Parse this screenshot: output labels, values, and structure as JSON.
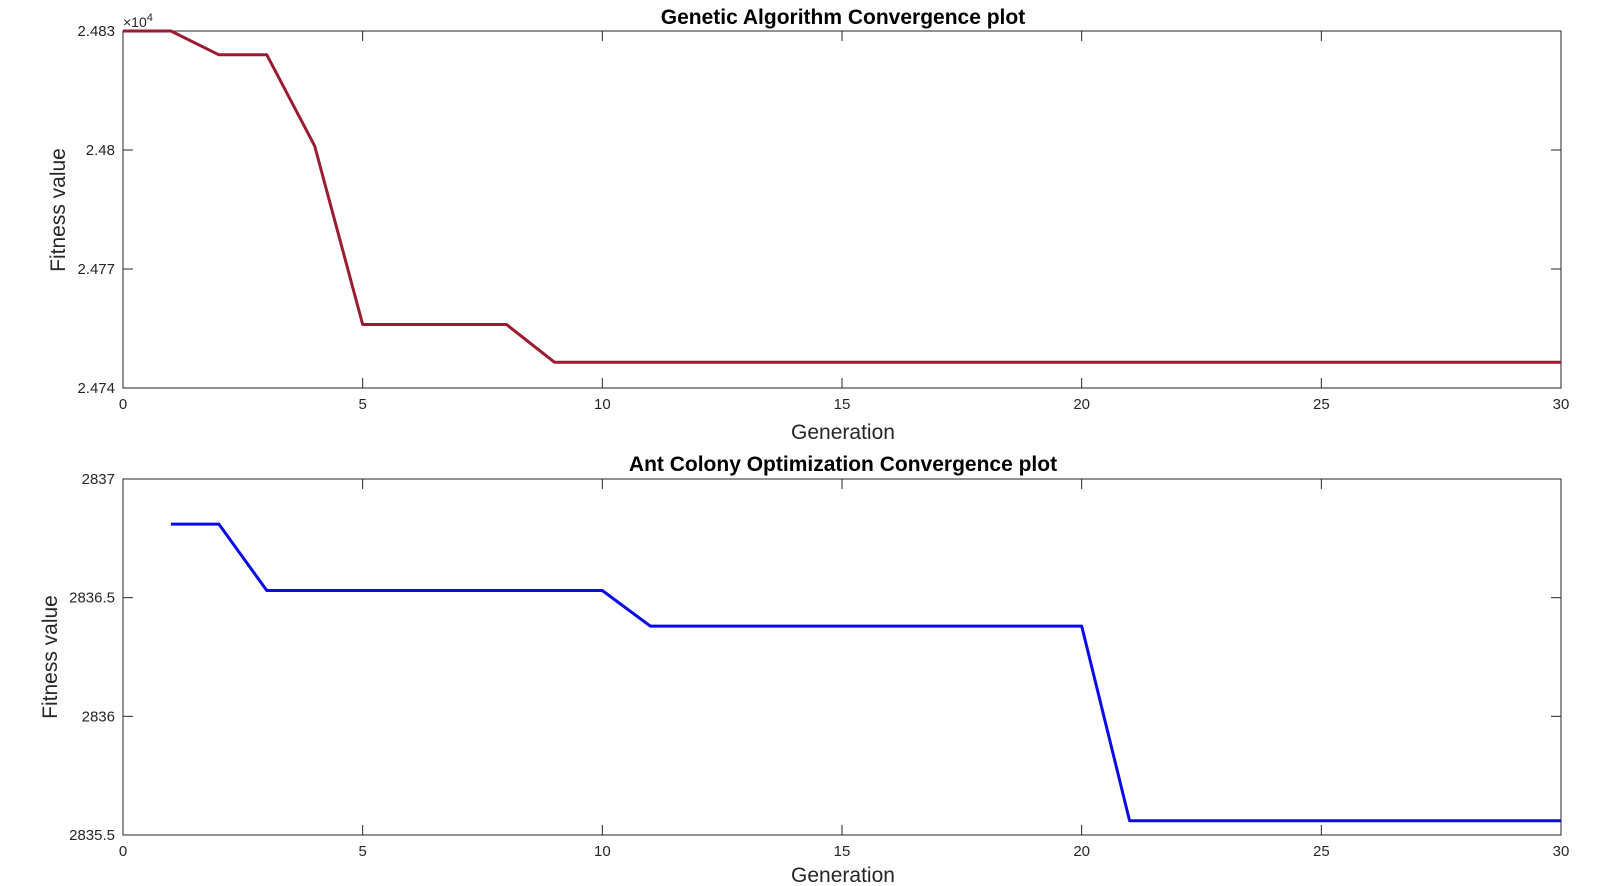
{
  "chart_data": [
    {
      "type": "line",
      "title": "Genetic Algorithm Convergence plot",
      "xlabel": "Generation",
      "ylabel": "Fitness value",
      "xlim": [
        0,
        30
      ],
      "ylim": [
        24740,
        24830
      ],
      "xticks": [
        0,
        5,
        10,
        15,
        20,
        25,
        30
      ],
      "yticks": [
        24740,
        24770,
        24800,
        24830
      ],
      "ytick_labels": [
        "2.474",
        "2.477",
        "2.48",
        "2.483"
      ],
      "y_exponent_label": "×10",
      "y_exponent_power": "4",
      "color": "#9b1b30",
      "series": [
        {
          "x": [
            0,
            1,
            2,
            3,
            4,
            5,
            6,
            7,
            8,
            9,
            10,
            11,
            12,
            13,
            14,
            15,
            16,
            17,
            18,
            19,
            20,
            21,
            22,
            23,
            24,
            25,
            26,
            27,
            28,
            29,
            30
          ],
          "values": [
            24830,
            24830,
            24824,
            24824,
            24801,
            24756,
            24756,
            24756,
            24756,
            24746.5,
            24746.5,
            24746.5,
            24746.5,
            24746.5,
            24746.5,
            24746.5,
            24746.5,
            24746.5,
            24746.5,
            24746.5,
            24746.5,
            24746.5,
            24746.5,
            24746.5,
            24746.5,
            24746.5,
            24746.5,
            24746.5,
            24746.5,
            24746.5,
            24746.5
          ]
        }
      ]
    },
    {
      "type": "line",
      "title": "Ant Colony Optimization Convergence plot",
      "xlabel": "Generation",
      "ylabel": "Fitness value",
      "xlim": [
        0,
        30
      ],
      "ylim": [
        2835.5,
        2837
      ],
      "xticks": [
        0,
        5,
        10,
        15,
        20,
        25,
        30
      ],
      "yticks": [
        2835.5,
        2836,
        2836.5,
        2837
      ],
      "ytick_labels": [
        "2835.5",
        "2836",
        "2836.5",
        "2837"
      ],
      "color": "#0a0ae6",
      "series": [
        {
          "x": [
            1,
            2,
            3,
            4,
            5,
            6,
            7,
            8,
            9,
            10,
            11,
            12,
            13,
            14,
            15,
            16,
            17,
            18,
            19,
            20,
            21,
            22,
            23,
            24,
            25,
            26,
            27,
            28,
            29,
            30
          ],
          "values": [
            2836.81,
            2836.81,
            2836.53,
            2836.53,
            2836.53,
            2836.53,
            2836.53,
            2836.53,
            2836.53,
            2836.53,
            2836.38,
            2836.38,
            2836.38,
            2836.38,
            2836.38,
            2836.38,
            2836.38,
            2836.38,
            2836.38,
            2836.38,
            2835.56,
            2835.56,
            2835.56,
            2835.56,
            2835.56,
            2835.56,
            2835.56,
            2835.56,
            2835.56,
            2835.56
          ]
        }
      ]
    }
  ]
}
